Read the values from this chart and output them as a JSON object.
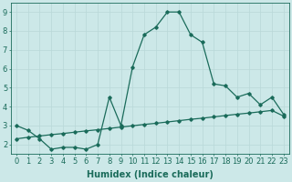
{
  "x": [
    0,
    1,
    2,
    3,
    4,
    5,
    6,
    7,
    8,
    9,
    10,
    11,
    12,
    13,
    14,
    15,
    16,
    17,
    18,
    19,
    20,
    21,
    22,
    23
  ],
  "y_upper": [
    3.0,
    2.75,
    2.3,
    1.75,
    1.85,
    1.85,
    1.75,
    2.0,
    4.5,
    3.0,
    6.1,
    7.8,
    8.2,
    9.0,
    9.0,
    7.8,
    7.4,
    5.2,
    5.1,
    4.5,
    4.7,
    4.1,
    4.5,
    3.6
  ],
  "y_lower": [
    2.3,
    2.38,
    2.45,
    2.52,
    2.58,
    2.65,
    2.72,
    2.78,
    2.85,
    2.92,
    2.99,
    3.06,
    3.12,
    3.19,
    3.26,
    3.33,
    3.39,
    3.46,
    3.53,
    3.6,
    3.66,
    3.73,
    3.8,
    3.5
  ],
  "line_color": "#1a6b5a",
  "bg_color": "#cce8e8",
  "grid_color": "#b8d8d8",
  "xlabel": "Humidex (Indice chaleur)",
  "yticks": [
    2,
    3,
    4,
    5,
    6,
    7,
    8,
    9
  ],
  "xtick_labels": [
    "0",
    "1",
    "2",
    "3",
    "4",
    "5",
    "6",
    "7",
    "8",
    "9",
    "10",
    "11",
    "12",
    "13",
    "14",
    "15",
    "16",
    "17",
    "18",
    "19",
    "20",
    "21",
    "22",
    "23"
  ],
  "xlim": [
    -0.5,
    23.5
  ],
  "ylim": [
    1.5,
    9.5
  ],
  "marker": "D",
  "markersize": 1.8,
  "linewidth": 0.9,
  "xlabel_fontsize": 7,
  "tick_fontsize": 6
}
